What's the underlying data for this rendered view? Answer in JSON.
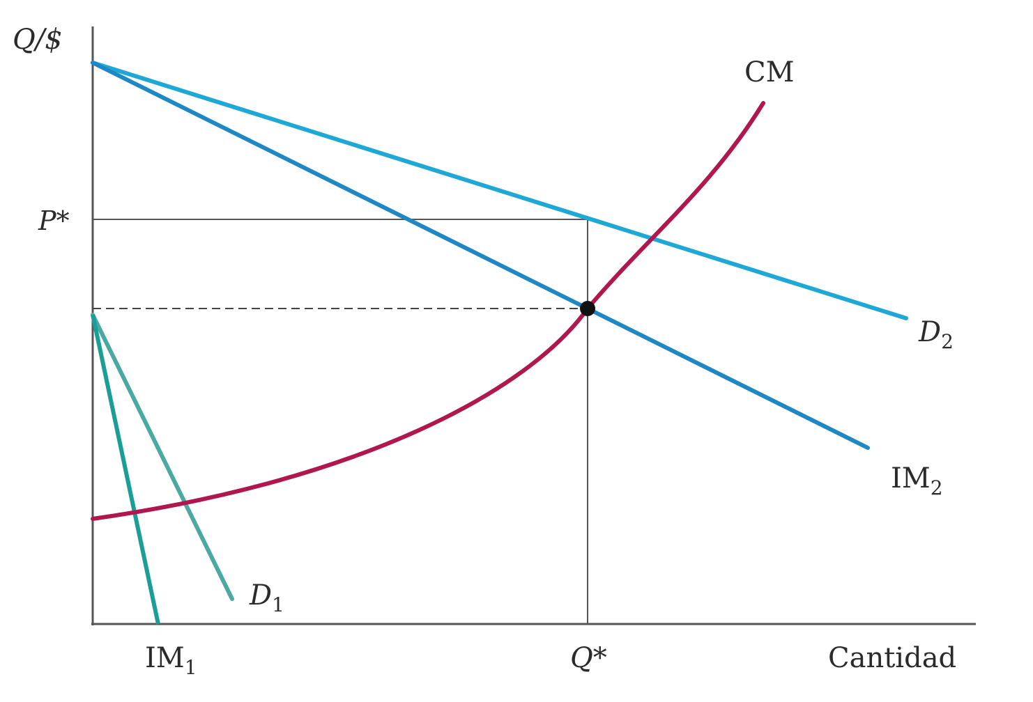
{
  "axes": {
    "y_label": "Q/$",
    "x_label": "Cantidad"
  },
  "ticks": {
    "price_label": "P*",
    "quantity_label": "Q*"
  },
  "curves": {
    "cm": {
      "label": "CM",
      "color": "#b0174e"
    },
    "d2": {
      "base": "D",
      "sub": "2",
      "color": "#1fa8d6"
    },
    "im2": {
      "base": "IM",
      "sub": "2",
      "color": "#1e88c4"
    },
    "d1": {
      "base": "D",
      "sub": "1",
      "color": "#4aa9a2"
    },
    "im1": {
      "base": "IM",
      "sub": "1",
      "color": "#1b9e97"
    }
  },
  "colors": {
    "axis": "#555555",
    "guide": "#555555",
    "equilibrium_point": "#111111"
  }
}
